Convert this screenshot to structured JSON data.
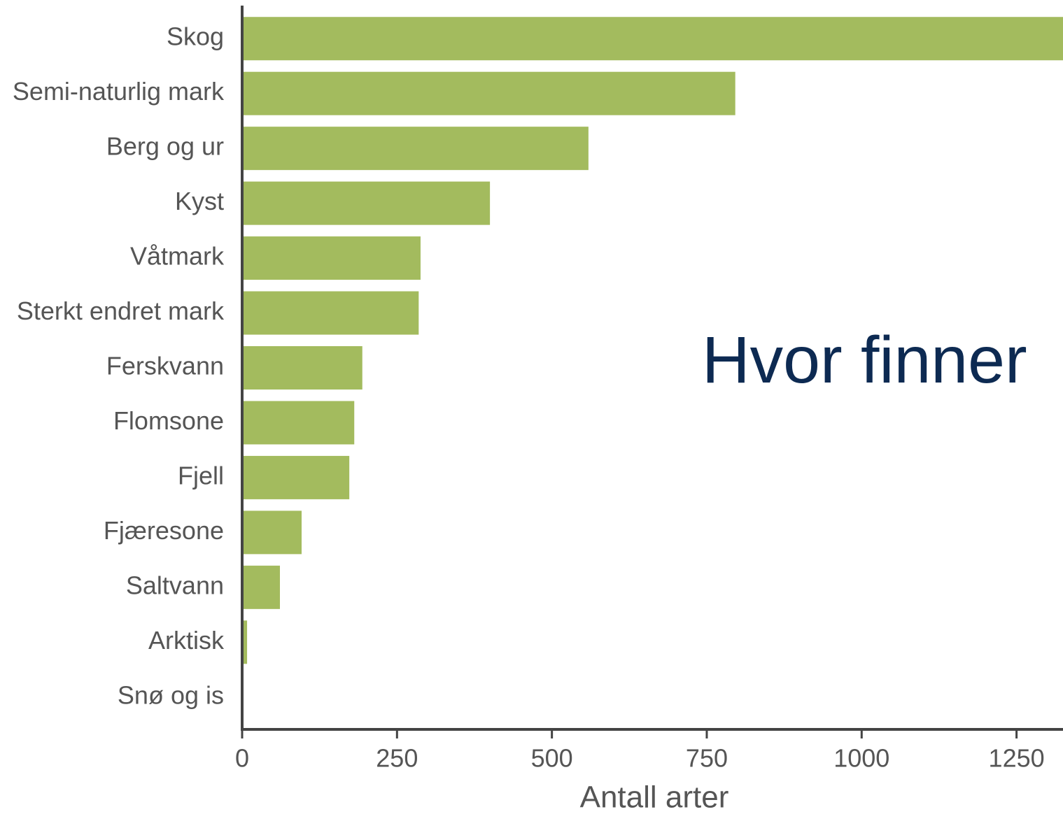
{
  "chart_data": {
    "type": "bar",
    "orientation": "horizontal",
    "annotation": "Hvor finner",
    "x_label": "Antall arter",
    "categories": [
      "Skog",
      "Semi-naturlig mark",
      "Berg og ur",
      "Kyst",
      "Våtmark",
      "Sterkt endret mark",
      "Ferskvann",
      "Flomsone",
      "Fjell",
      "Fjæresone",
      "Saltvann",
      "Arktisk",
      "Snø og is"
    ],
    "values": [
      1330,
      796,
      559,
      400,
      288,
      285,
      194,
      181,
      173,
      96,
      61,
      8,
      2
    ],
    "color": "#a3bb5e",
    "xlim": [
      0,
      1325
    ],
    "xticks": [
      0,
      250,
      500,
      750,
      1000,
      1250
    ],
    "grid": false
  }
}
